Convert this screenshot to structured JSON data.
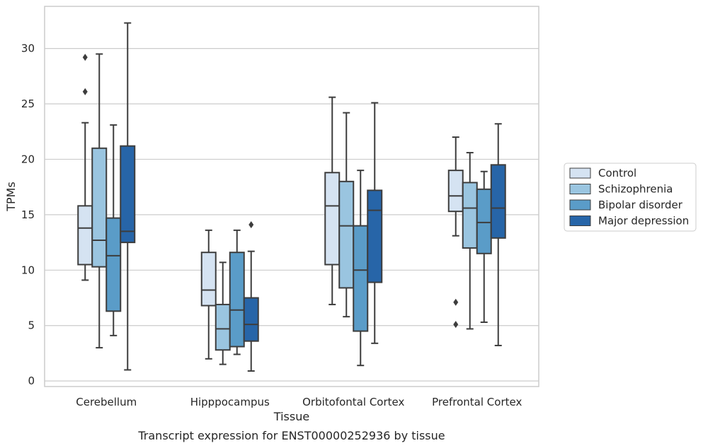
{
  "caption": "Transcript expression for ENST00000252936 by tissue",
  "chart_data": {
    "type": "boxplot",
    "xlabel": "Tissue",
    "ylabel": "TPMs",
    "ylim": [
      -0.5,
      33.8
    ],
    "yticks": [
      0,
      5,
      10,
      15,
      20,
      25,
      30
    ],
    "categories": [
      "Cerebellum",
      "Hipppocampus",
      "Orbitofontal Cortex",
      "Prefrontal Cortex"
    ],
    "grid": "horizontal",
    "legend_position": "right",
    "series": [
      {
        "name": "Control",
        "color": "#d5e3f2",
        "boxes": [
          {
            "whisker_low": 9.1,
            "q1": 10.5,
            "median": 13.8,
            "q3": 15.8,
            "whisker_high": 23.3,
            "outliers": [
              26.1,
              29.2
            ]
          },
          {
            "whisker_low": 2.0,
            "q1": 6.8,
            "median": 8.2,
            "q3": 11.6,
            "whisker_high": 13.6,
            "outliers": []
          },
          {
            "whisker_low": 6.9,
            "q1": 10.5,
            "median": 15.8,
            "q3": 18.8,
            "whisker_high": 25.6,
            "outliers": []
          },
          {
            "whisker_low": 13.1,
            "q1": 15.3,
            "median": 16.7,
            "q3": 19.0,
            "whisker_high": 22.0,
            "outliers": [
              5.1,
              7.1
            ]
          }
        ]
      },
      {
        "name": "Schizophrenia",
        "color": "#9ac5e0",
        "boxes": [
          {
            "whisker_low": 3.0,
            "q1": 10.3,
            "median": 12.7,
            "q3": 21.0,
            "whisker_high": 29.5,
            "outliers": []
          },
          {
            "whisker_low": 1.5,
            "q1": 2.8,
            "median": 4.7,
            "q3": 6.9,
            "whisker_high": 10.7,
            "outliers": []
          },
          {
            "whisker_low": 5.8,
            "q1": 8.4,
            "median": 14.0,
            "q3": 18.0,
            "whisker_high": 24.2,
            "outliers": []
          },
          {
            "whisker_low": 4.7,
            "q1": 12.0,
            "median": 15.6,
            "q3": 17.9,
            "whisker_high": 20.6,
            "outliers": []
          }
        ]
      },
      {
        "name": "Bipolar disorder",
        "color": "#5a9cc8",
        "boxes": [
          {
            "whisker_low": 4.1,
            "q1": 6.3,
            "median": 11.3,
            "q3": 14.7,
            "whisker_high": 23.1,
            "outliers": []
          },
          {
            "whisker_low": 2.4,
            "q1": 3.1,
            "median": 6.4,
            "q3": 11.6,
            "whisker_high": 13.6,
            "outliers": []
          },
          {
            "whisker_low": 1.4,
            "q1": 4.5,
            "median": 10.0,
            "q3": 14.0,
            "whisker_high": 19.0,
            "outliers": []
          },
          {
            "whisker_low": 5.3,
            "q1": 11.5,
            "median": 14.3,
            "q3": 17.3,
            "whisker_high": 18.9,
            "outliers": []
          }
        ]
      },
      {
        "name": "Major depression",
        "color": "#2765a8",
        "boxes": [
          {
            "whisker_low": 1.0,
            "q1": 12.5,
            "median": 13.5,
            "q3": 21.2,
            "whisker_high": 32.3,
            "outliers": []
          },
          {
            "whisker_low": 0.9,
            "q1": 3.6,
            "median": 5.1,
            "q3": 7.5,
            "whisker_high": 11.7,
            "outliers": [
              14.1
            ]
          },
          {
            "whisker_low": 3.4,
            "q1": 8.9,
            "median": 15.4,
            "q3": 17.2,
            "whisker_high": 25.1,
            "outliers": []
          },
          {
            "whisker_low": 3.2,
            "q1": 12.9,
            "median": 15.6,
            "q3": 19.5,
            "whisker_high": 23.2,
            "outliers": []
          }
        ]
      }
    ]
  }
}
